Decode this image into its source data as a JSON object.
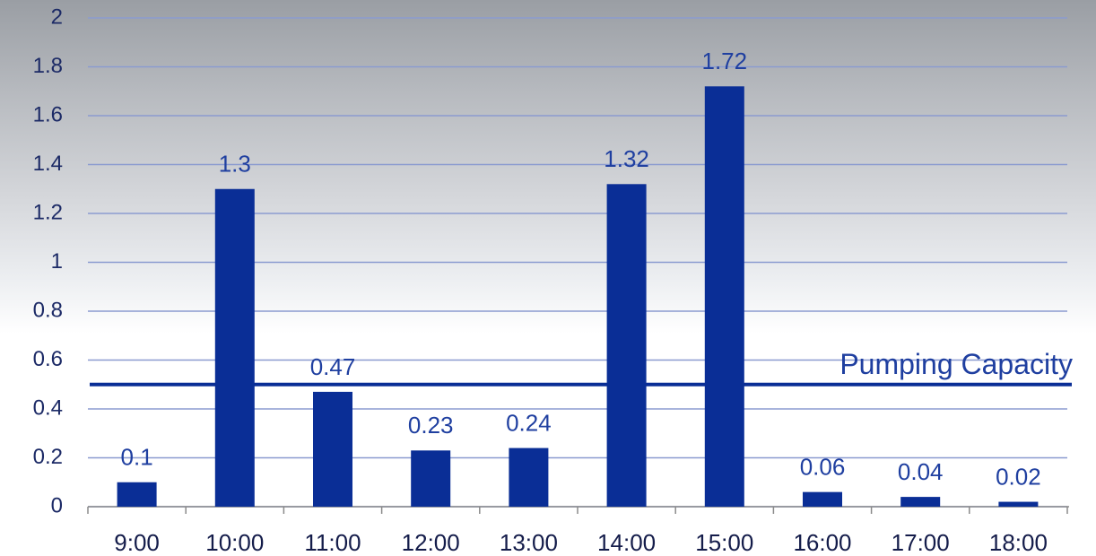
{
  "chart_data": {
    "type": "bar",
    "categories": [
      "9:00",
      "10:00",
      "11:00",
      "12:00",
      "13:00",
      "14:00",
      "15:00",
      "16:00",
      "17:00",
      "18:00"
    ],
    "values": [
      0.1,
      1.3,
      0.47,
      0.23,
      0.24,
      1.32,
      1.72,
      0.06,
      0.04,
      0.02
    ],
    "color": "#0a2e96",
    "ylim": [
      0,
      2
    ],
    "yticks": [
      0,
      0.2,
      0.4,
      0.6,
      0.8,
      1,
      1.2,
      1.4,
      1.6,
      1.8,
      2
    ],
    "grid": true,
    "reference_line": {
      "value": 0.5,
      "label": "Pumping Capacity",
      "color": "#0a2e96"
    }
  }
}
